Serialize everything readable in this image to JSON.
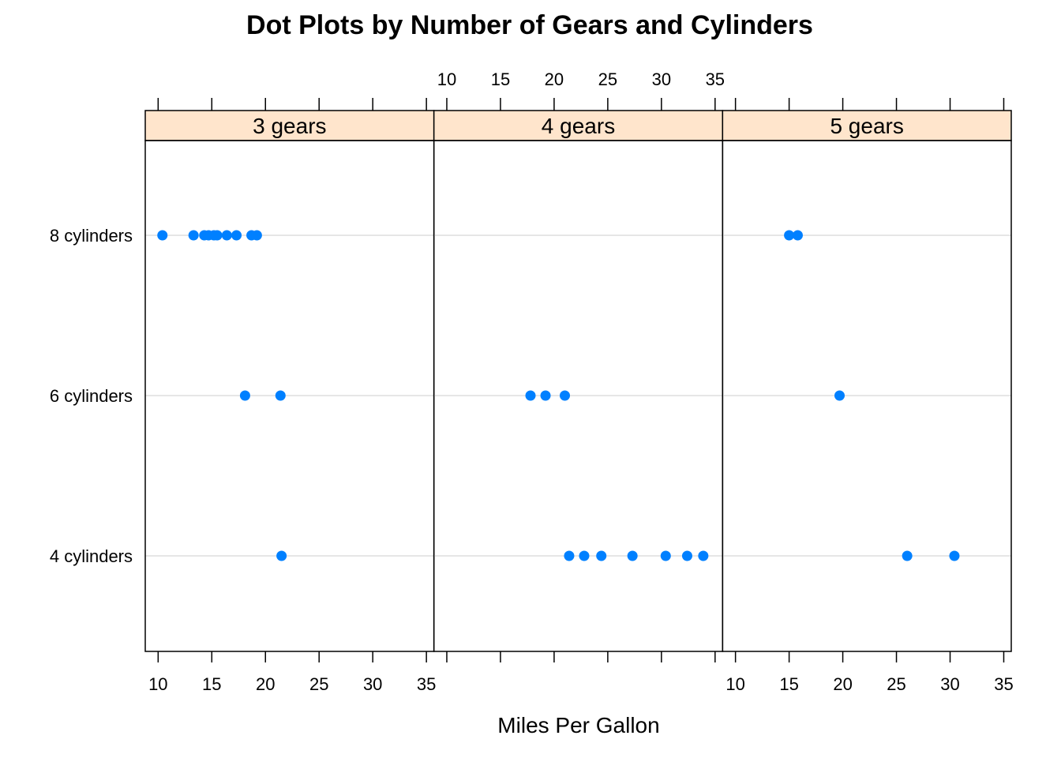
{
  "chart_data": {
    "type": "scatter",
    "title": "Dot Plots by Number of Gears and Cylinders",
    "xlabel": "Miles Per Gallon",
    "ylabel": "",
    "xlim": [
      8.8,
      35.7
    ],
    "x_ticks": [
      "10",
      "15",
      "20",
      "25",
      "30",
      "35"
    ],
    "rows": [
      "4 cylinders",
      "6 cylinders",
      "8 cylinders"
    ],
    "point_color": "#0080ff",
    "strip_color": "#ffe5cc",
    "grid": true,
    "grid_color": "#e6e6e6",
    "panels": [
      {
        "label": "3 gears",
        "points": [
          {
            "x": 10.4,
            "row": "8 cylinders"
          },
          {
            "x": 13.3,
            "row": "8 cylinders"
          },
          {
            "x": 14.3,
            "row": "8 cylinders"
          },
          {
            "x": 14.7,
            "row": "8 cylinders"
          },
          {
            "x": 15.2,
            "row": "8 cylinders"
          },
          {
            "x": 15.5,
            "row": "8 cylinders"
          },
          {
            "x": 16.4,
            "row": "8 cylinders"
          },
          {
            "x": 17.3,
            "row": "8 cylinders"
          },
          {
            "x": 18.7,
            "row": "8 cylinders"
          },
          {
            "x": 19.2,
            "row": "8 cylinders"
          },
          {
            "x": 18.1,
            "row": "6 cylinders"
          },
          {
            "x": 21.4,
            "row": "6 cylinders"
          },
          {
            "x": 21.5,
            "row": "4 cylinders"
          }
        ]
      },
      {
        "label": "4 gears",
        "points": [
          {
            "x": 17.8,
            "row": "6 cylinders"
          },
          {
            "x": 19.2,
            "row": "6 cylinders"
          },
          {
            "x": 21.0,
            "row": "6 cylinders"
          },
          {
            "x": 21.4,
            "row": "4 cylinders"
          },
          {
            "x": 22.8,
            "row": "4 cylinders"
          },
          {
            "x": 24.4,
            "row": "4 cylinders"
          },
          {
            "x": 27.3,
            "row": "4 cylinders"
          },
          {
            "x": 30.4,
            "row": "4 cylinders"
          },
          {
            "x": 32.4,
            "row": "4 cylinders"
          },
          {
            "x": 33.9,
            "row": "4 cylinders"
          }
        ]
      },
      {
        "label": "5 gears",
        "points": [
          {
            "x": 15.0,
            "row": "8 cylinders"
          },
          {
            "x": 15.8,
            "row": "8 cylinders"
          },
          {
            "x": 19.7,
            "row": "6 cylinders"
          },
          {
            "x": 26.0,
            "row": "4 cylinders"
          },
          {
            "x": 30.4,
            "row": "4 cylinders"
          }
        ]
      }
    ]
  }
}
